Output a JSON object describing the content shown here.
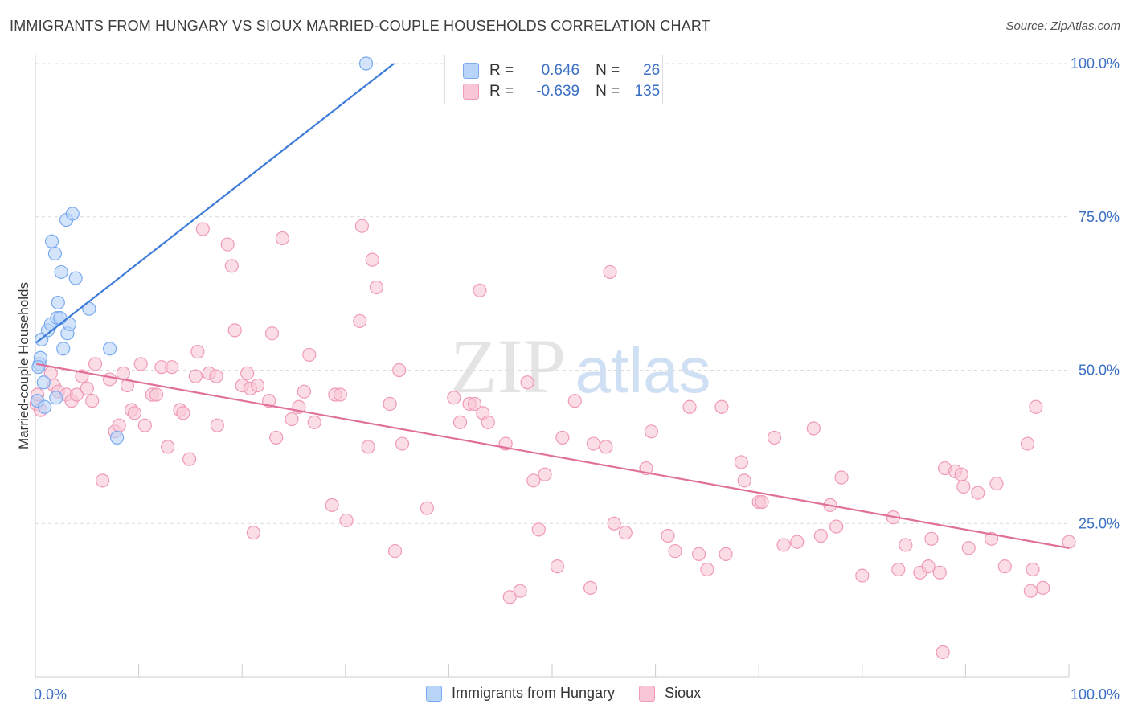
{
  "title": "IMMIGRANTS FROM HUNGARY VS SIOUX MARRIED-COUPLE HOUSEHOLDS CORRELATION CHART",
  "source": "Source: ZipAtlas.com",
  "watermark": {
    "zip": "ZIP",
    "atlas": "atlas"
  },
  "legend_inset": {
    "r_label": "R =",
    "n_label": "N =",
    "rows": [
      {
        "r": "0.646",
        "n": "26",
        "color": "#7aaaf0",
        "fill": "#b8d4f8"
      },
      {
        "r": "-0.639",
        "n": "135",
        "color": "#f09ab6",
        "fill": "#f8c6d6"
      }
    ]
  },
  "legend_bottom": [
    {
      "label": "Immigrants from Hungary",
      "color": "#7aaaf0",
      "fill": "#b8d4f8"
    },
    {
      "label": "Sioux",
      "color": "#f09ab6",
      "fill": "#f8c6d6"
    }
  ],
  "chart_data": {
    "type": "scatter",
    "title": "IMMIGRANTS FROM HUNGARY VS SIOUX MARRIED-COUPLE HOUSEHOLDS CORRELATION CHART",
    "xlabel": "",
    "ylabel": "Married-couple Households",
    "xlim": [
      0,
      100
    ],
    "ylim": [
      0,
      100
    ],
    "x_tick_labels": [
      "0.0%",
      "100.0%"
    ],
    "y_tick_labels": [
      "25.0%",
      "50.0%",
      "75.0%",
      "100.0%"
    ],
    "y_tick_values": [
      25,
      50,
      75,
      100
    ],
    "grid": true,
    "series": [
      {
        "name": "Immigrants from Hungary",
        "color": "#3d7bd9",
        "marker_fill": "#b8d4f8",
        "marker_stroke": "#7aaaf0",
        "trend": {
          "x0": 0.1,
          "y0": 54.5,
          "x1": 34.7,
          "y1": 100
        },
        "points": [
          [
            0.2,
            45.0
          ],
          [
            0.4,
            51.0
          ],
          [
            0.5,
            52.0
          ],
          [
            0.6,
            55.0
          ],
          [
            0.8,
            48.0
          ],
          [
            0.9,
            44.0
          ],
          [
            1.2,
            56.5
          ],
          [
            1.5,
            57.5
          ],
          [
            1.6,
            71.0
          ],
          [
            1.9,
            69.0
          ],
          [
            2.0,
            45.5
          ],
          [
            2.1,
            58.5
          ],
          [
            2.2,
            61.0
          ],
          [
            2.4,
            58.5
          ],
          [
            2.5,
            66.0
          ],
          [
            2.7,
            53.5
          ],
          [
            3.0,
            74.5
          ],
          [
            3.1,
            56.0
          ],
          [
            3.3,
            57.5
          ],
          [
            3.6,
            75.5
          ],
          [
            3.9,
            65.0
          ],
          [
            5.2,
            60.0
          ],
          [
            7.2,
            53.5
          ],
          [
            7.9,
            39.0
          ],
          [
            32.0,
            100.0
          ],
          [
            0.3,
            50.5
          ]
        ]
      },
      {
        "name": "Sioux",
        "color": "#e0709a",
        "marker_fill": "#f8c6d6",
        "marker_stroke": "#f09ab6",
        "trend": {
          "x0": 0.1,
          "y0": 51.0,
          "x1": 100,
          "y1": 21.0
        },
        "points": [
          [
            0.1,
            44.5
          ],
          [
            0.2,
            46.0
          ],
          [
            0.5,
            43.5
          ],
          [
            1.5,
            49.5
          ],
          [
            1.8,
            47.5
          ],
          [
            2.2,
            46.5
          ],
          [
            3.0,
            46.0
          ],
          [
            3.5,
            45.0
          ],
          [
            4.0,
            46.0
          ],
          [
            4.5,
            49.0
          ],
          [
            5.0,
            47.0
          ],
          [
            5.5,
            45.0
          ],
          [
            5.8,
            51.0
          ],
          [
            6.5,
            32.0
          ],
          [
            7.2,
            48.5
          ],
          [
            7.7,
            40.0
          ],
          [
            8.1,
            41.0
          ],
          [
            8.5,
            49.5
          ],
          [
            8.9,
            47.5
          ],
          [
            9.3,
            43.5
          ],
          [
            9.6,
            43.0
          ],
          [
            10.2,
            51.0
          ],
          [
            10.6,
            41.0
          ],
          [
            11.3,
            46.0
          ],
          [
            11.7,
            46.0
          ],
          [
            12.2,
            50.5
          ],
          [
            12.8,
            37.5
          ],
          [
            13.2,
            50.5
          ],
          [
            14.0,
            43.5
          ],
          [
            14.3,
            43.0
          ],
          [
            14.9,
            35.5
          ],
          [
            15.5,
            49.0
          ],
          [
            15.7,
            53.0
          ],
          [
            16.2,
            73.0
          ],
          [
            16.8,
            49.5
          ],
          [
            17.5,
            49.0
          ],
          [
            17.6,
            41.0
          ],
          [
            18.6,
            70.5
          ],
          [
            19.0,
            67.0
          ],
          [
            19.3,
            56.5
          ],
          [
            20.0,
            47.5
          ],
          [
            20.5,
            49.5
          ],
          [
            20.8,
            47.0
          ],
          [
            21.1,
            23.5
          ],
          [
            21.5,
            47.5
          ],
          [
            22.6,
            45.0
          ],
          [
            22.9,
            56.0
          ],
          [
            23.3,
            39.0
          ],
          [
            23.9,
            71.5
          ],
          [
            24.8,
            42.0
          ],
          [
            25.5,
            44.0
          ],
          [
            26.0,
            46.5
          ],
          [
            26.5,
            52.5
          ],
          [
            27.0,
            41.5
          ],
          [
            28.7,
            28.0
          ],
          [
            29.0,
            46.0
          ],
          [
            29.5,
            46.0
          ],
          [
            30.1,
            25.5
          ],
          [
            31.4,
            58.0
          ],
          [
            31.6,
            73.5
          ],
          [
            32.2,
            37.5
          ],
          [
            32.6,
            68.0
          ],
          [
            33.0,
            63.5
          ],
          [
            34.3,
            44.5
          ],
          [
            34.8,
            20.5
          ],
          [
            35.2,
            50.0
          ],
          [
            35.5,
            38.0
          ],
          [
            37.9,
            27.5
          ],
          [
            40.5,
            45.5
          ],
          [
            41.1,
            41.5
          ],
          [
            42.0,
            44.5
          ],
          [
            42.5,
            44.5
          ],
          [
            43.0,
            63.0
          ],
          [
            43.3,
            43.0
          ],
          [
            43.8,
            41.5
          ],
          [
            45.5,
            38.0
          ],
          [
            45.9,
            13.0
          ],
          [
            46.9,
            14.0
          ],
          [
            47.6,
            48.0
          ],
          [
            48.2,
            32.0
          ],
          [
            48.7,
            24.0
          ],
          [
            49.3,
            33.0
          ],
          [
            50.5,
            18.0
          ],
          [
            51.0,
            39.0
          ],
          [
            52.2,
            45.0
          ],
          [
            53.7,
            14.5
          ],
          [
            54.0,
            38.0
          ],
          [
            55.2,
            37.5
          ],
          [
            55.6,
            66.0
          ],
          [
            56.0,
            25.0
          ],
          [
            57.1,
            23.5
          ],
          [
            59.1,
            34.0
          ],
          [
            59.6,
            40.0
          ],
          [
            61.2,
            23.0
          ],
          [
            61.9,
            20.5
          ],
          [
            63.3,
            44.0
          ],
          [
            64.2,
            20.0
          ],
          [
            65.0,
            17.5
          ],
          [
            66.4,
            44.0
          ],
          [
            66.8,
            20.0
          ],
          [
            68.3,
            35.0
          ],
          [
            68.6,
            32.0
          ],
          [
            70.0,
            28.5
          ],
          [
            70.3,
            28.5
          ],
          [
            71.5,
            39.0
          ],
          [
            72.4,
            21.5
          ],
          [
            73.7,
            22.0
          ],
          [
            75.3,
            40.5
          ],
          [
            76.0,
            23.0
          ],
          [
            76.9,
            28.0
          ],
          [
            77.5,
            24.5
          ],
          [
            78.0,
            32.5
          ],
          [
            80.0,
            16.5
          ],
          [
            83.0,
            26.0
          ],
          [
            83.5,
            17.5
          ],
          [
            84.2,
            21.5
          ],
          [
            85.6,
            17.0
          ],
          [
            86.4,
            18.0
          ],
          [
            86.7,
            22.5
          ],
          [
            87.5,
            17.0
          ],
          [
            87.8,
            4.0
          ],
          [
            88.0,
            34.0
          ],
          [
            89.0,
            33.5
          ],
          [
            89.6,
            33.0
          ],
          [
            89.8,
            31.0
          ],
          [
            90.3,
            21.0
          ],
          [
            91.2,
            30.0
          ],
          [
            92.5,
            22.5
          ],
          [
            93.0,
            31.5
          ],
          [
            93.8,
            18.0
          ],
          [
            96.0,
            38.0
          ],
          [
            96.3,
            14.0
          ],
          [
            96.5,
            17.5
          ],
          [
            96.8,
            44.0
          ],
          [
            97.5,
            14.5
          ],
          [
            100.0,
            22.0
          ]
        ]
      }
    ]
  }
}
